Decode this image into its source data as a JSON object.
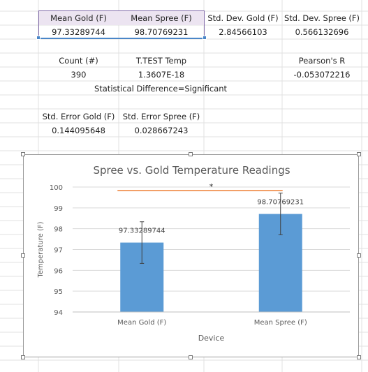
{
  "spreadsheet": {
    "headers": {
      "mean_gold": "Mean Gold (F)",
      "mean_spree": "Mean Spree (F)",
      "std_gold": "Std. Dev. Gold (F)",
      "std_spree": "Std. Dev. Spree (F)"
    },
    "values": {
      "mean_gold": "97.33289744",
      "mean_spree": "98.70769231",
      "std_gold": "2.84566103",
      "std_spree": "0.566132696"
    },
    "count_label": "Count (#)",
    "count_value": "390",
    "ttest_label": "T.TEST Temp",
    "ttest_value": "1.3607E-18",
    "pearson_label": "Pearson's R",
    "pearson_value": "-0.053072216",
    "stat_diff": "Statistical Difference=Significant",
    "se_gold_label": "Std. Error Gold (F)",
    "se_spree_label": "Std. Error Spree (F)",
    "se_gold_value": "0.144095648",
    "se_spree_value": "0.028667243"
  },
  "colors": {
    "bar": "#5b9bd5",
    "significance_line": "#ed7d31",
    "grid": "#d9d9d9",
    "cell_border": "#e0e0e0",
    "selection": "#7f68a8"
  },
  "chart_data": {
    "type": "bar",
    "title": "Spree vs. Gold Temperature Readings",
    "xlabel": "Device",
    "ylabel": "Temperature (F)",
    "categories": [
      "Mean Gold (F)",
      "Mean Spree (F)"
    ],
    "values": [
      97.33289744,
      98.70769231
    ],
    "data_labels": [
      "97.33289744",
      "98.70769231"
    ],
    "error_bars": [
      1.0,
      1.0
    ],
    "ylim": [
      94,
      100
    ],
    "yticks": [
      "94",
      "95",
      "96",
      "97",
      "98",
      "99",
      "100"
    ],
    "grid": true,
    "significance_marker": "*"
  }
}
